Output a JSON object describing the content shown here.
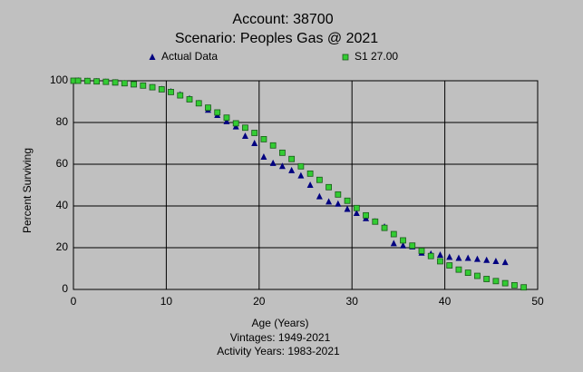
{
  "chart_data": {
    "type": "scatter",
    "title": "Account: 38700",
    "subtitle": "Scenario: Peoples Gas @ 2021",
    "x_label": "Age (Years)",
    "y_label": "Percent Surviving",
    "notes": [
      "Vintages: 1949-2021",
      "Activity Years: 1983-2021"
    ],
    "xlim": [
      0,
      50
    ],
    "xticks": [
      0,
      10,
      20,
      30,
      40,
      50
    ],
    "ylim": [
      0,
      100
    ],
    "yticks": [
      0,
      20,
      40,
      60,
      80,
      100
    ],
    "grid": true,
    "legend": "top",
    "series": [
      {
        "name": "Actual Data",
        "color": "#000080",
        "marker": "triangle",
        "x": [
          0.5,
          1.5,
          2.5,
          3.5,
          4.5,
          5.5,
          6.5,
          7.5,
          8.5,
          9.5,
          10.5,
          11.5,
          12.5,
          13.5,
          14.5,
          15.5,
          16.5,
          17.5,
          18.5,
          19.5,
          20.5,
          21.5,
          22.5,
          23.5,
          24.5,
          25.5,
          26.5,
          27.5,
          28.5,
          29.5,
          30.5,
          31.5,
          32.5,
          33.5,
          34.5,
          35.5,
          36.5,
          37.5,
          38.5,
          39.5,
          40.5,
          41.5,
          42.5,
          43.5,
          44.5,
          45.5,
          46.5
        ],
        "values": [
          100,
          99.8,
          99.6,
          99.4,
          99.1,
          98.7,
          98.2,
          97.6,
          96.8,
          95.9,
          94.8,
          93.3,
          91.4,
          89.2,
          86,
          83.5,
          80.5,
          78,
          73.5,
          70,
          63.5,
          60.5,
          59,
          57,
          54.5,
          50,
          44.5,
          42,
          41,
          38.5,
          36.5,
          34,
          32.5,
          30,
          22,
          21,
          20.5,
          17.5,
          17,
          16.5,
          15.5,
          15,
          15,
          14.5,
          14,
          13.5,
          13
        ]
      },
      {
        "name": "S1 27.00",
        "color": "#33cc33",
        "marker": "square",
        "x": [
          0,
          0.5,
          1.5,
          2.5,
          3.5,
          4.5,
          5.5,
          6.5,
          7.5,
          8.5,
          9.5,
          10.5,
          11.5,
          12.5,
          13.5,
          14.5,
          15.5,
          16.5,
          17.5,
          18.5,
          19.5,
          20.5,
          21.5,
          22.5,
          23.5,
          24.5,
          25.5,
          26.5,
          27.5,
          28.5,
          29.5,
          30.5,
          31.5,
          32.5,
          33.5,
          34.5,
          35.5,
          36.5,
          37.5,
          38.5,
          39.5,
          40.5,
          41.5,
          42.5,
          43.5,
          44.5,
          45.5,
          46.5,
          47.5,
          48.5
        ],
        "values": [
          100,
          100,
          99.9,
          99.7,
          99.5,
          99.2,
          98.8,
          98.3,
          97.7,
          96.9,
          95.9,
          94.6,
          93,
          91.1,
          89.2,
          87.1,
          84.8,
          82.3,
          79.6,
          77.5,
          75,
          72,
          69,
          65.5,
          62.5,
          59,
          55.5,
          52.5,
          49,
          45.5,
          42.5,
          39,
          35.5,
          32.5,
          29.5,
          26.5,
          23.5,
          21,
          18.5,
          16,
          13.5,
          11.5,
          9.5,
          8,
          6.5,
          5,
          4,
          3,
          2,
          1
        ]
      }
    ]
  }
}
